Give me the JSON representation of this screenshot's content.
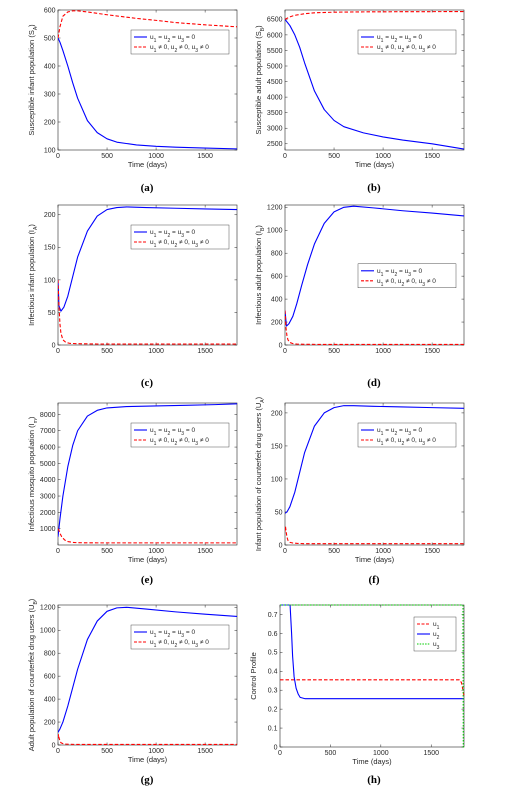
{
  "chart_data": [
    {
      "type": "line",
      "caption": "(a)",
      "xlabel": "Time (days)",
      "ylabel": "Susceptible infant population (S",
      "ylabel_sub": "A",
      "ylabel_close": ")",
      "xlim": [
        0,
        1825
      ],
      "ylim": [
        100,
        600
      ],
      "xticks": [
        0,
        500,
        1000,
        1500
      ],
      "yticks": [
        100,
        200,
        300,
        400,
        500,
        600
      ],
      "legend_position": "top-right",
      "series": [
        {
          "name": "u1 = u2 = u3 = 0",
          "legend": [
            "u",
            "1",
            " = u",
            "2",
            " = u",
            "3",
            " = 0"
          ],
          "color": "#0000ff",
          "style": "solid",
          "x": [
            0,
            20,
            50,
            100,
            150,
            200,
            300,
            400,
            500,
            600,
            800,
            1000,
            1200,
            1500,
            1825
          ],
          "y": [
            500,
            485,
            455,
            400,
            340,
            285,
            205,
            162,
            140,
            128,
            118,
            113,
            110,
            107,
            104
          ]
        },
        {
          "name": "u1 ≠ 0, u2 ≠ 0, u3 ≠ 0",
          "legend": [
            "u",
            "1",
            " ≠ 0, u",
            "2",
            " ≠ 0, u",
            "3",
            " ≠ 0"
          ],
          "color": "#ff0000",
          "style": "dashed",
          "x": [
            0,
            20,
            50,
            100,
            150,
            200,
            300,
            500,
            800,
            1000,
            1200,
            1500,
            1825
          ],
          "y": [
            500,
            540,
            578,
            593,
            597,
            597,
            593,
            583,
            570,
            563,
            555,
            547,
            540
          ]
        }
      ]
    },
    {
      "type": "line",
      "caption": "(b)",
      "xlabel": "Time (days)",
      "ylabel": "Susceptible adult population (S",
      "ylabel_sub": "B",
      "ylabel_close": ")",
      "xlim": [
        0,
        1825
      ],
      "ylim": [
        2300,
        6800
      ],
      "xticks": [
        0,
        500,
        1000,
        1500
      ],
      "yticks": [
        2500,
        3000,
        3500,
        4000,
        4500,
        5000,
        5500,
        6000,
        6500
      ],
      "legend_position": "top-right",
      "series": [
        {
          "name": "u1 = u2 = u3 = 0",
          "legend": [
            "u",
            "1",
            " = u",
            "2",
            " = u",
            "3",
            " = 0"
          ],
          "color": "#0000ff",
          "style": "solid",
          "x": [
            0,
            50,
            100,
            150,
            200,
            300,
            400,
            500,
            600,
            800,
            1000,
            1200,
            1500,
            1825
          ],
          "y": [
            6500,
            6300,
            6000,
            5600,
            5100,
            4200,
            3600,
            3250,
            3050,
            2850,
            2720,
            2620,
            2500,
            2330
          ]
        },
        {
          "name": "u1 ≠ 0, u2 ≠ 0, u3 ≠ 0",
          "legend": [
            "u",
            "1",
            " ≠ 0, u",
            "2",
            " ≠ 0, u",
            "3",
            " ≠ 0"
          ],
          "color": "#ff0000",
          "style": "dashed",
          "x": [
            0,
            50,
            100,
            200,
            300,
            500,
            800,
            1200,
            1825
          ],
          "y": [
            6500,
            6580,
            6630,
            6680,
            6710,
            6730,
            6740,
            6745,
            6750
          ]
        }
      ]
    },
    {
      "type": "line",
      "caption": "(c)",
      "xlabel": "",
      "ylabel": "Infectious infant population (I",
      "ylabel_sub": "A",
      "ylabel_close": ")",
      "xlim": [
        0,
        1825
      ],
      "ylim": [
        0,
        215
      ],
      "xticks": [
        0,
        500,
        1000,
        1500
      ],
      "yticks": [
        0,
        50,
        100,
        150,
        200
      ],
      "legend_position": "top-right",
      "series": [
        {
          "name": "u1 = u2 = u3 = 0",
          "legend": [
            "u",
            "1",
            " = u",
            "2",
            " = u",
            "3",
            " = 0"
          ],
          "color": "#0000ff",
          "style": "solid",
          "x": [
            0,
            10,
            30,
            60,
            100,
            150,
            200,
            300,
            400,
            500,
            600,
            700,
            900,
            1200,
            1500,
            1825
          ],
          "y": [
            100,
            60,
            52,
            58,
            75,
            105,
            135,
            175,
            198,
            208,
            211,
            212,
            211,
            210,
            209,
            208
          ]
        },
        {
          "name": "u1 ≠ 0, u2 ≠ 0, u3 ≠ 0",
          "legend": [
            "u",
            "1",
            " ≠ 0, u",
            "2",
            " ≠ 0, u",
            "3",
            " ≠ 0"
          ],
          "color": "#ff0000",
          "style": "dashed",
          "x": [
            0,
            10,
            20,
            30,
            50,
            80,
            120,
            200,
            400,
            1000,
            1825
          ],
          "y": [
            100,
            60,
            32,
            18,
            8,
            4,
            2.5,
            2,
            1.5,
            1.5,
            1.5
          ]
        }
      ]
    },
    {
      "type": "line",
      "caption": "(d)",
      "xlabel": "",
      "ylabel": "Infectious adult population (I",
      "ylabel_sub": "B",
      "ylabel_close": ")",
      "xlim": [
        0,
        1825
      ],
      "ylim": [
        0,
        1220
      ],
      "xticks": [
        0,
        500,
        1000,
        1500
      ],
      "yticks": [
        0,
        200,
        400,
        600,
        800,
        1000,
        1200
      ],
      "legend_position": "bottom-right",
      "series": [
        {
          "name": "u1 = u2 = u3 = 0",
          "legend": [
            "u",
            "1",
            " = u",
            "2",
            " = u",
            "3",
            " = 0"
          ],
          "color": "#0000ff",
          "style": "solid",
          "x": [
            0,
            15,
            40,
            80,
            120,
            170,
            230,
            300,
            400,
            500,
            600,
            700,
            900,
            1200,
            1500,
            1825
          ],
          "y": [
            300,
            165,
            185,
            250,
            360,
            520,
            700,
            880,
            1060,
            1160,
            1200,
            1210,
            1195,
            1170,
            1150,
            1125
          ]
        },
        {
          "name": "u1 ≠ 0, u2 ≠ 0, u3 ≠ 0",
          "legend": [
            "u",
            "1",
            " ≠ 0, u",
            "2",
            " ≠ 0, u",
            "3",
            " ≠ 0"
          ],
          "color": "#ff0000",
          "style": "dashed",
          "x": [
            0,
            10,
            20,
            30,
            50,
            80,
            120,
            200,
            400,
            1000,
            1825
          ],
          "y": [
            300,
            150,
            80,
            45,
            22,
            12,
            8,
            6,
            5,
            5,
            5
          ]
        }
      ]
    },
    {
      "type": "line",
      "caption": "(e)",
      "xlabel": "Time (days)",
      "ylabel": "Infectious mosquito population (I",
      "ylabel_sub": "m",
      "ylabel_close": ")",
      "xlim": [
        0,
        1825
      ],
      "ylim": [
        0,
        8700
      ],
      "xticks": [
        0,
        500,
        1000,
        1500
      ],
      "yticks": [
        1000,
        2000,
        3000,
        4000,
        5000,
        6000,
        7000,
        8000
      ],
      "legend_position": "top-right",
      "series": [
        {
          "name": "u1 = u2 = u3 = 0",
          "legend": [
            "u",
            "1",
            " = u",
            "2",
            " = u",
            "3",
            " = 0"
          ],
          "color": "#0000ff",
          "style": "solid",
          "x": [
            0,
            20,
            50,
            100,
            150,
            200,
            300,
            400,
            500,
            700,
            1000,
            1300,
            1600,
            1825
          ],
          "y": [
            500,
            1600,
            3000,
            4800,
            6100,
            7000,
            7900,
            8250,
            8400,
            8480,
            8520,
            8560,
            8600,
            8650
          ]
        },
        {
          "name": "u1 ≠ 0, u2 ≠ 0, u3 ≠ 0",
          "legend": [
            "u",
            "1",
            " ≠ 0, u",
            "2",
            " ≠ 0, u",
            "3",
            " ≠ 0"
          ],
          "color": "#ff0000",
          "style": "dashed",
          "x": [
            0,
            10,
            20,
            40,
            70,
            100,
            150,
            200,
            400,
            1000,
            1825
          ],
          "y": [
            1000,
            900,
            720,
            480,
            300,
            210,
            160,
            140,
            130,
            130,
            130
          ]
        }
      ]
    },
    {
      "type": "line",
      "caption": "(f)",
      "xlabel": "Time (days)",
      "ylabel": "Infant population of counterfeit drug users (U",
      "ylabel_sub": "A",
      "ylabel_close": ")",
      "xlim": [
        0,
        1825
      ],
      "ylim": [
        0,
        215
      ],
      "xticks": [
        0,
        500,
        1000,
        1500
      ],
      "yticks": [
        0,
        50,
        100,
        150,
        200
      ],
      "legend_position": "top-right",
      "series": [
        {
          "name": "u1 = u2 = u3 = 0",
          "legend": [
            "u",
            "1",
            " = u",
            "2",
            " = u",
            "3",
            " = 0"
          ],
          "color": "#0000ff",
          "style": "solid",
          "x": [
            0,
            20,
            50,
            100,
            150,
            200,
            300,
            400,
            500,
            600,
            700,
            900,
            1200,
            1500,
            1825
          ],
          "y": [
            48,
            50,
            58,
            80,
            110,
            140,
            180,
            200,
            208,
            211,
            211,
            210,
            209,
            208,
            207
          ]
        },
        {
          "name": "u1 ≠ 0, u2 ≠ 0, u3 ≠ 0",
          "legend": [
            "u",
            "1",
            " ≠ 0, u",
            "2",
            " ≠ 0, u",
            "3",
            " ≠ 0"
          ],
          "color": "#ff0000",
          "style": "dashed",
          "x": [
            0,
            5,
            10,
            20,
            30,
            50,
            80,
            120,
            200,
            400,
            1000,
            1825
          ],
          "y": [
            20,
            28,
            22,
            12,
            7,
            4,
            3,
            2.5,
            2,
            2,
            2,
            2
          ]
        }
      ]
    },
    {
      "type": "line",
      "caption": "(g)",
      "xlabel": "Time (days)",
      "ylabel": "Adult population of counterfeit drug users (U",
      "ylabel_sub": "B",
      "ylabel_close": ")",
      "xlim": [
        0,
        1825
      ],
      "ylim": [
        0,
        1220
      ],
      "xticks": [
        0,
        500,
        1000,
        1500
      ],
      "yticks": [
        0,
        200,
        400,
        600,
        800,
        1000,
        1200
      ],
      "legend_position": "top-right",
      "series": [
        {
          "name": "u1 = u2 = u3 = 0",
          "legend": [
            "u",
            "1",
            " = u",
            "2",
            " = u",
            "3",
            " = 0"
          ],
          "color": "#0000ff",
          "style": "solid",
          "x": [
            0,
            20,
            50,
            100,
            150,
            200,
            300,
            400,
            500,
            600,
            700,
            900,
            1200,
            1500,
            1825
          ],
          "y": [
            110,
            140,
            200,
            340,
            500,
            660,
            920,
            1080,
            1165,
            1195,
            1200,
            1185,
            1160,
            1140,
            1120
          ]
        },
        {
          "name": "u1 ≠ 0, u2 ≠ 0, u3 ≠ 0",
          "legend": [
            "u",
            "1",
            " ≠ 0, u",
            "2",
            " ≠ 0, u",
            "3",
            " ≠ 0"
          ],
          "color": "#ff0000",
          "style": "dashed",
          "x": [
            0,
            5,
            10,
            20,
            30,
            50,
            80,
            120,
            200,
            400,
            1000,
            1825
          ],
          "y": [
            60,
            90,
            65,
            35,
            20,
            12,
            8,
            6,
            5,
            5,
            5,
            5
          ]
        }
      ]
    },
    {
      "type": "line",
      "caption": "(h)",
      "xlabel": "Time (days)",
      "ylabel": "Control Profile",
      "ylabel_sub": "",
      "ylabel_close": "",
      "xlim": [
        0,
        1825
      ],
      "ylim": [
        0,
        0.75
      ],
      "xticks": [
        0,
        500,
        1000,
        1500
      ],
      "yticks": [
        0,
        0.1,
        0.2,
        0.3,
        0.4,
        0.5,
        0.6,
        0.7
      ],
      "legend_position": "top-right",
      "series": [
        {
          "name": "u1",
          "legend": [
            "u",
            "1"
          ],
          "color": "#ff0000",
          "style": "dashed",
          "x": [
            0,
            200,
            600,
            1000,
            1400,
            1780,
            1800,
            1815,
            1825
          ],
          "y": [
            0.355,
            0.355,
            0.355,
            0.355,
            0.355,
            0.355,
            0.34,
            0.3,
            0.27
          ]
        },
        {
          "name": "u2",
          "legend": [
            "u",
            "2"
          ],
          "color": "#0000ff",
          "style": "solid",
          "x": [
            0,
            100,
            115,
            125,
            140,
            160,
            180,
            200,
            250,
            400,
            1000,
            1825
          ],
          "y": [
            0.75,
            0.75,
            0.6,
            0.48,
            0.37,
            0.31,
            0.28,
            0.262,
            0.255,
            0.255,
            0.255,
            0.255
          ]
        },
        {
          "name": "u3",
          "legend": [
            "u",
            "3"
          ],
          "color": "#00cc00",
          "style": "dotted",
          "x": [
            0,
            400,
            800,
            1200,
            1600,
            1815,
            1818,
            1825
          ],
          "y": [
            0.75,
            0.75,
            0.75,
            0.75,
            0.75,
            0.75,
            0.0,
            0.0
          ]
        }
      ]
    }
  ]
}
